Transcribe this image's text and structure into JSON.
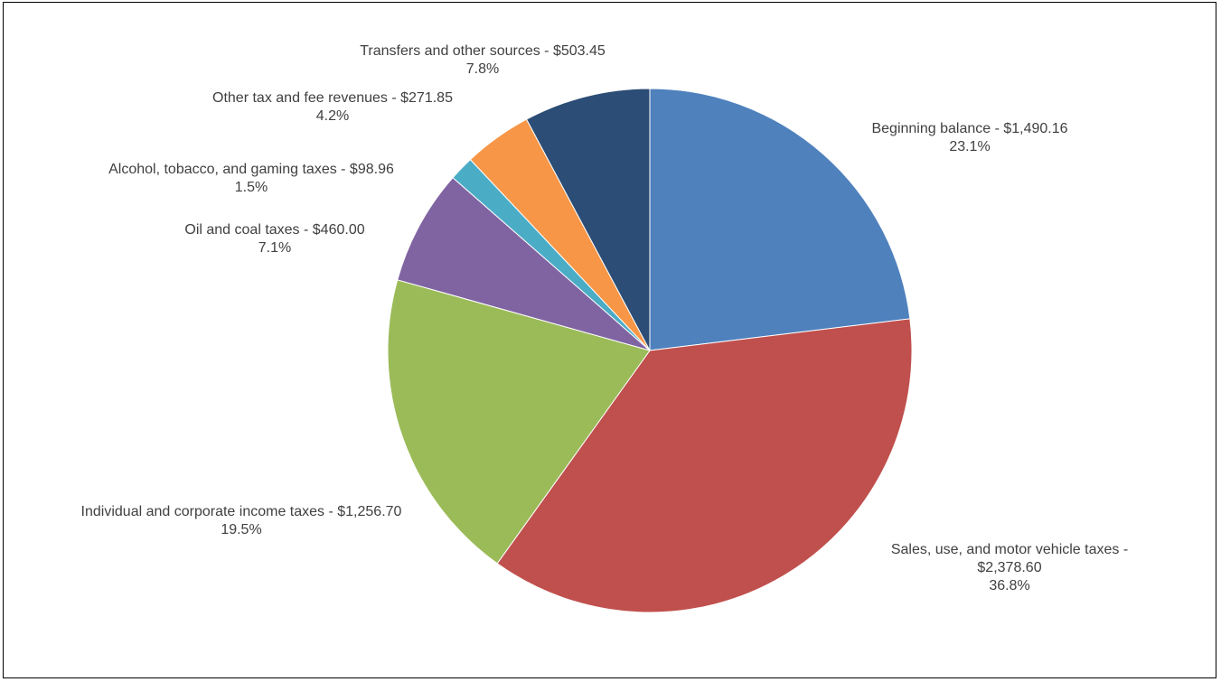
{
  "chart_data": {
    "type": "pie",
    "title": "",
    "start_angle_deg": 0,
    "direction": "clockwise",
    "legend": "none",
    "slices": [
      {
        "name": "Beginning balance",
        "value": 1490.16,
        "value_label": "$1,490.16",
        "percent_label": "23.1%",
        "color": "#4f81bd",
        "label_lines": [
          "Beginning balance - $1,490.16",
          "23.1%"
        ]
      },
      {
        "name": "Sales, use, and motor vehicle taxes",
        "value": 2378.6,
        "value_label": "$2,378.60",
        "percent_label": "36.8%",
        "color": "#c0504d",
        "label_lines": [
          "Sales, use, and motor vehicle taxes -",
          "$2,378.60",
          "36.8%"
        ]
      },
      {
        "name": "Individual and corporate income taxes",
        "value": 1256.7,
        "value_label": "$1,256.70",
        "percent_label": "19.5%",
        "color": "#9bbb59",
        "label_lines": [
          "Individual and corporate income taxes - $1,256.70",
          "19.5%"
        ]
      },
      {
        "name": "Oil and coal taxes",
        "value": 460.0,
        "value_label": "$460.00",
        "percent_label": "7.1%",
        "color": "#8064a2",
        "label_lines": [
          "Oil and coal taxes - $460.00",
          "7.1%"
        ]
      },
      {
        "name": "Alcohol, tobacco, and gaming taxes",
        "value": 98.96,
        "value_label": "$98.96",
        "percent_label": "1.5%",
        "color": "#4bacc6",
        "label_lines": [
          "Alcohol, tobacco, and gaming taxes - $98.96",
          "1.5%"
        ]
      },
      {
        "name": "Other tax and fee revenues",
        "value": 271.85,
        "value_label": "$271.85",
        "percent_label": "4.2%",
        "color": "#f79646",
        "label_lines": [
          "Other tax and fee revenues - $271.85",
          "4.2%"
        ]
      },
      {
        "name": "Transfers and other sources",
        "value": 503.45,
        "value_label": "$503.45",
        "percent_label": "7.8%",
        "color": "#2c4d75",
        "label_lines": [
          "Transfers and other sources - $503.45",
          "7.8%"
        ]
      }
    ]
  }
}
